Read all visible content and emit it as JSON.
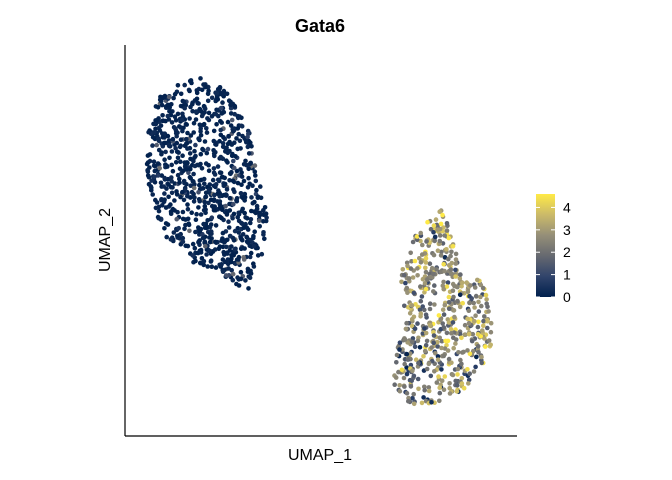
{
  "chart_data": {
    "type": "scatter",
    "title": "Gata6",
    "xlabel": "UMAP_1",
    "ylabel": "UMAP_2",
    "x_ticks_shown": false,
    "y_ticks_shown": false,
    "grid": false,
    "legend_position": "right",
    "color_scale": {
      "name": "cividis",
      "min": 0,
      "max": 4.6,
      "ticks": [
        0,
        1,
        2,
        3,
        4
      ],
      "colors": [
        "#00204d",
        "#31446b",
        "#666970",
        "#958f78",
        "#cbba69",
        "#ffea46"
      ]
    },
    "clusters": [
      {
        "label": "left cluster",
        "x_range": [
          -11,
          -3.5
        ],
        "y_range": [
          -3.5,
          6.5
        ],
        "expression_level": "low (approx. 0)",
        "point_count_estimate": 900
      },
      {
        "label": "right cluster",
        "x_range": [
          3.5,
          9.5
        ],
        "y_range": [
          -9,
          0.5
        ],
        "expression_level": "mixed (approx. 1 to 4.5)",
        "point_count_estimate": 600
      }
    ]
  }
}
